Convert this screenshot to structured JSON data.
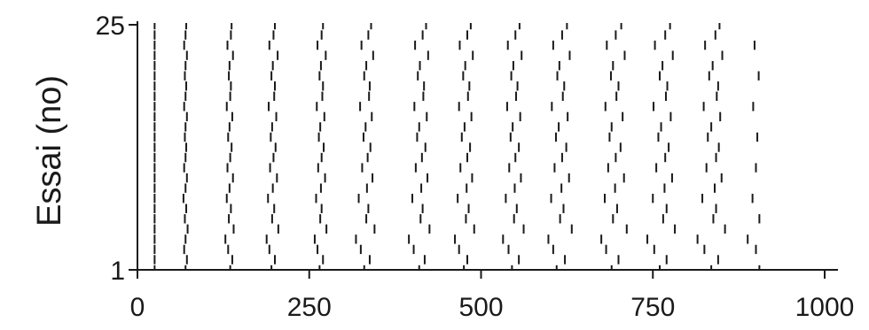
{
  "chart_data": {
    "type": "scatter",
    "title": "",
    "xlabel": "",
    "ylabel": "Essai (no)",
    "xlim": [
      0,
      1000
    ],
    "ylim": [
      1,
      25
    ],
    "x_ticks": [
      "0",
      "250",
      "500",
      "750",
      "1000"
    ],
    "y_ticks": [
      "1",
      "25"
    ],
    "grid": false,
    "marker": "vertical-tick",
    "color": "#1a1a1a",
    "trials": [
      1,
      2,
      3,
      4,
      5,
      6,
      7,
      8,
      9,
      10,
      11,
      12,
      13,
      14,
      15,
      16,
      17,
      18,
      19,
      20,
      21,
      22,
      23,
      24,
      25
    ],
    "spike_times": [
      [
        25,
        70,
        135,
        195,
        265,
        330,
        410,
        475,
        545,
        610,
        690,
        760,
        835,
        905
      ],
      [
        25,
        72,
        138,
        200,
        270,
        338,
        418,
        480,
        555,
        622,
        700,
        770,
        845
      ],
      [
        25,
        68,
        132,
        192,
        262,
        325,
        402,
        468,
        540,
        605,
        682,
        752,
        825,
        900
      ],
      [
        25,
        70,
        128,
        188,
        258,
        318,
        395,
        462,
        532,
        598,
        675,
        742,
        815,
        888
      ],
      [
        25,
        73,
        140,
        205,
        275,
        345,
        425,
        490,
        562,
        632,
        712,
        782,
        855
      ],
      [
        25,
        69,
        133,
        196,
        266,
        333,
        412,
        478,
        548,
        615,
        692,
        765,
        838,
        905
      ],
      [
        25,
        71,
        136,
        199,
        268,
        336,
        415,
        482,
        552,
        620,
        698,
        770,
        842
      ],
      [
        25,
        67,
        130,
        190,
        260,
        322,
        400,
        466,
        536,
        602,
        680,
        750,
        822,
        895
      ],
      [
        25,
        70,
        134,
        197,
        267,
        334,
        413,
        479,
        549,
        617,
        695,
        767,
        840
      ],
      [
        25,
        72,
        139,
        203,
        273,
        342,
        422,
        487,
        558,
        628,
        708,
        778,
        850
      ],
      [
        25,
        68,
        131,
        193,
        263,
        327,
        405,
        470,
        541,
        607,
        685,
        755,
        828,
        900
      ],
      [
        25,
        70,
        135,
        198,
        268,
        335,
        414,
        480,
        550,
        618,
        696,
        768,
        842
      ],
      [
        25,
        71,
        137,
        201,
        271,
        339,
        419,
        484,
        555,
        624,
        703,
        773,
        846
      ],
      [
        25,
        69,
        132,
        194,
        264,
        329,
        407,
        472,
        543,
        609,
        687,
        758,
        830,
        902
      ],
      [
        25,
        70,
        134,
        196,
        266,
        332,
        410,
        476,
        546,
        613,
        690,
        762,
        835
      ],
      [
        25,
        72,
        138,
        202,
        272,
        341,
        421,
        486,
        557,
        626,
        706,
        776,
        848
      ],
      [
        25,
        68,
        130,
        191,
        261,
        324,
        403,
        468,
        538,
        603,
        681,
        751,
        824,
        896
      ],
      [
        25,
        70,
        135,
        199,
        269,
        337,
        416,
        481,
        551,
        619,
        697,
        769,
        843
      ],
      [
        25,
        71,
        136,
        200,
        270,
        338,
        417,
        483,
        553,
        621,
        700,
        771,
        845
      ],
      [
        25,
        69,
        133,
        195,
        265,
        330,
        408,
        474,
        544,
        611,
        689,
        760,
        832,
        904
      ],
      [
        25,
        70,
        134,
        197,
        267,
        333,
        411,
        477,
        547,
        614,
        692,
        764,
        837
      ],
      [
        25,
        72,
        139,
        204,
        274,
        343,
        423,
        488,
        559,
        629,
        709,
        779,
        851
      ],
      [
        25,
        68,
        131,
        192,
        262,
        326,
        404,
        469,
        539,
        605,
        683,
        753,
        826,
        898
      ],
      [
        25,
        70,
        136,
        198,
        268,
        336,
        415,
        480,
        550,
        618,
        696,
        768,
        841
      ],
      [
        25,
        71,
        137,
        200,
        270,
        340,
        420,
        485,
        556,
        625,
        704,
        775,
        847
      ]
    ]
  }
}
